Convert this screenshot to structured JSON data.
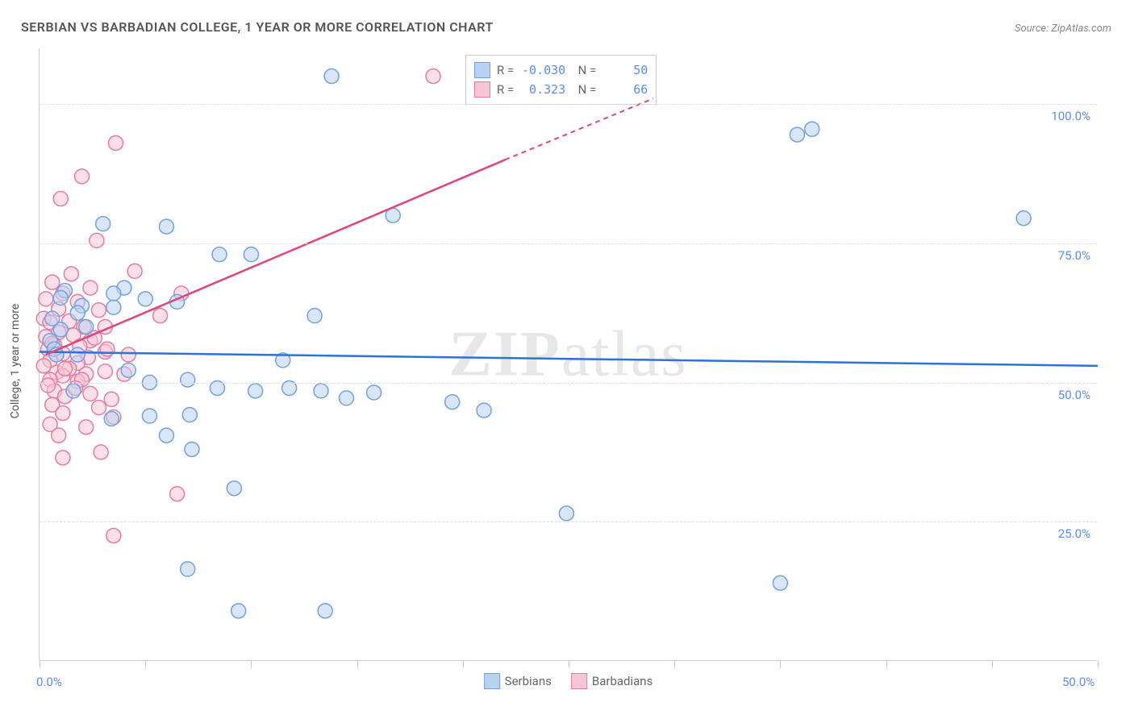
{
  "title": "SERBIAN VS BARBADIAN COLLEGE, 1 YEAR OR MORE CORRELATION CHART",
  "source": "Source: ZipAtlas.com",
  "y_axis_title": "College, 1 year or more",
  "watermark": "ZIPatlas",
  "chart": {
    "type": "scatter",
    "xlim": [
      0,
      50
    ],
    "ylim": [
      0,
      110
    ],
    "y_ticks": [
      25,
      50,
      75,
      100
    ],
    "y_tick_labels": [
      "25.0%",
      "50.0%",
      "75.0%",
      "100.0%"
    ],
    "x_ticks": [
      0,
      5,
      10,
      15,
      20,
      25,
      30,
      35,
      40,
      45,
      50
    ],
    "x_labels": {
      "0": "0.0%",
      "50": "50.0%"
    },
    "grid_color": "#dddddd",
    "background_color": "#ffffff",
    "marker_radius": 9,
    "marker_opacity": 0.55,
    "marker_stroke_width": 1.5,
    "series": [
      {
        "name": "Serbians",
        "color_fill": "#b9d2f3",
        "color_stroke": "#6fa3e0",
        "R": "-0.030",
        "N": "50",
        "trend": {
          "x1": 0,
          "y1": 55.5,
          "x2": 50,
          "y2": 53,
          "color": "#2d72d9",
          "width": 2.5,
          "dash": "none"
        },
        "points": [
          [
            13.8,
            105
          ],
          [
            35.8,
            94.5
          ],
          [
            46.5,
            79.5
          ],
          [
            6,
            78
          ],
          [
            3,
            78.5
          ],
          [
            16.7,
            80
          ],
          [
            10,
            73
          ],
          [
            8.5,
            73
          ],
          [
            4,
            67
          ],
          [
            5,
            65
          ],
          [
            6.5,
            64.5
          ],
          [
            3.5,
            63.5
          ],
          [
            2,
            63.8
          ],
          [
            1.2,
            66.5
          ],
          [
            1,
            65.2
          ],
          [
            1.8,
            62.5
          ],
          [
            1,
            59.5
          ],
          [
            0.6,
            61.5
          ],
          [
            0.5,
            57.5
          ],
          [
            0.7,
            56
          ],
          [
            13,
            62
          ],
          [
            1.8,
            55
          ],
          [
            11.5,
            54
          ],
          [
            4.2,
            52.2
          ],
          [
            5.2,
            50
          ],
          [
            7,
            50.5
          ],
          [
            8.4,
            49
          ],
          [
            10.2,
            48.5
          ],
          [
            11.8,
            49
          ],
          [
            13.3,
            48.5
          ],
          [
            14.5,
            47.2
          ],
          [
            15.8,
            48.2
          ],
          [
            19.5,
            46.5
          ],
          [
            21,
            45
          ],
          [
            24.9,
            26.5
          ],
          [
            1.6,
            48.5
          ],
          [
            3.4,
            43.5
          ],
          [
            5.2,
            44
          ],
          [
            7.1,
            44.2
          ],
          [
            6,
            40.5
          ],
          [
            7.2,
            38
          ],
          [
            9.2,
            31
          ],
          [
            9.4,
            9
          ],
          [
            13.5,
            9
          ],
          [
            7,
            16.5
          ],
          [
            35,
            14
          ],
          [
            36.5,
            95.5
          ],
          [
            3.5,
            66
          ],
          [
            2.2,
            60
          ],
          [
            0.8,
            55
          ]
        ]
      },
      {
        "name": "Barbadians",
        "color_fill": "#f7c6d4",
        "color_stroke": "#e87ba2",
        "R": "0.323",
        "N": "66",
        "trend_solid": {
          "x1": 0.3,
          "y1": 55,
          "x2": 22,
          "y2": 90,
          "color": "#e0457e",
          "width": 2.5
        },
        "trend_dash": {
          "x1": 22,
          "y1": 90,
          "x2": 29,
          "y2": 101,
          "color": "#e0457e",
          "width": 2,
          "dash": "6 5"
        },
        "points": [
          [
            18.6,
            105
          ],
          [
            3.6,
            93
          ],
          [
            2,
            87
          ],
          [
            1,
            83
          ],
          [
            2.7,
            75.5
          ],
          [
            4.5,
            70
          ],
          [
            6.7,
            66
          ],
          [
            5.7,
            62
          ],
          [
            1.5,
            69.5
          ],
          [
            0.6,
            68
          ],
          [
            2.4,
            67
          ],
          [
            1.1,
            66
          ],
          [
            0.3,
            65
          ],
          [
            1.8,
            64.5
          ],
          [
            0.9,
            63.2
          ],
          [
            2.8,
            63
          ],
          [
            0.2,
            61.5
          ],
          [
            1.4,
            61
          ],
          [
            0.5,
            60.8
          ],
          [
            2.1,
            60
          ],
          [
            0.9,
            59
          ],
          [
            1.6,
            58.5
          ],
          [
            0.3,
            58.2
          ],
          [
            2.4,
            57.5
          ],
          [
            0.7,
            56.8
          ],
          [
            1.9,
            56.5
          ],
          [
            0.4,
            56
          ],
          [
            3.1,
            55.5
          ],
          [
            1.1,
            55.2
          ],
          [
            0.8,
            55
          ],
          [
            2.3,
            54.5
          ],
          [
            0.5,
            54
          ],
          [
            1.8,
            53.5
          ],
          [
            0.2,
            53
          ],
          [
            1.4,
            52.5
          ],
          [
            0.8,
            51.8
          ],
          [
            2.2,
            51.5
          ],
          [
            1.1,
            51.2
          ],
          [
            0.5,
            50.5
          ],
          [
            1.8,
            50.2
          ],
          [
            3.1,
            52
          ],
          [
            4,
            51.5
          ],
          [
            0.7,
            48.5
          ],
          [
            2.4,
            48
          ],
          [
            1.2,
            47.5
          ],
          [
            3.4,
            47
          ],
          [
            0.6,
            46
          ],
          [
            2.8,
            45.5
          ],
          [
            1.1,
            44.5
          ],
          [
            3.5,
            43.8
          ],
          [
            0.5,
            42.5
          ],
          [
            2.2,
            42
          ],
          [
            0.9,
            40.5
          ],
          [
            2.9,
            37.5
          ],
          [
            1.1,
            36.5
          ],
          [
            6.5,
            30
          ],
          [
            3.5,
            22.5
          ],
          [
            3.2,
            56
          ],
          [
            4.2,
            55
          ],
          [
            2.6,
            58
          ],
          [
            1.2,
            52.5
          ],
          [
            0.6,
            57
          ],
          [
            3.1,
            60
          ],
          [
            2.0,
            50.5
          ],
          [
            1.7,
            49
          ],
          [
            0.4,
            49.5
          ]
        ]
      }
    ]
  },
  "legend_labels": {
    "serbians": "Serbians",
    "barbadians": "Barbadians"
  }
}
